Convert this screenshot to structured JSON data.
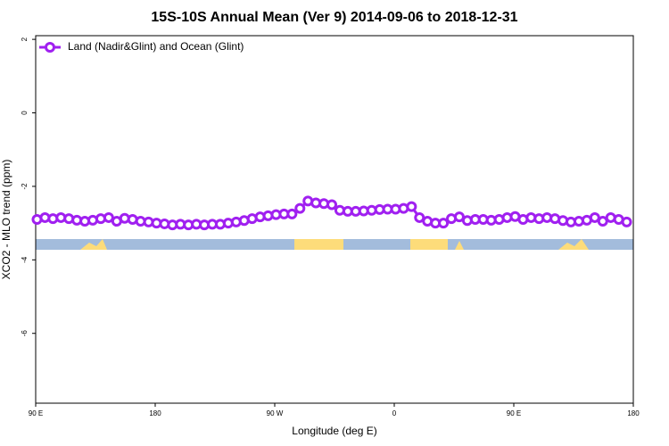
{
  "chart_data": {
    "type": "line",
    "title": "15S-10S Annual Mean (Ver 9)   2014-09-06 to 2018-12-31",
    "x_label": "Longitude (deg E)",
    "y_label": "XCO2 - MLO trend (ppm)",
    "xlim": [
      90,
      540
    ],
    "xticks": [
      {
        "value": 90,
        "label": "90 E"
      },
      180,
      {
        "value": 270,
        "label": "90 W"
      },
      {
        "value": 360,
        "label": "0"
      },
      {
        "value": 450,
        "label": "90 E"
      },
      {
        "value": 540,
        "label": "180"
      }
    ],
    "ylim": [
      -7.9,
      2.1
    ],
    "yticks": [
      2,
      0,
      -2,
      -4,
      -6
    ],
    "legend": "upper left",
    "x": [
      91,
      97,
      103,
      109,
      115,
      121,
      127,
      133,
      139,
      145,
      151,
      157,
      163,
      169,
      175,
      181,
      187,
      193,
      199,
      205,
      211,
      217,
      223,
      229,
      235,
      241,
      247,
      253,
      259,
      265,
      271,
      277,
      283,
      289,
      295,
      301,
      307,
      313,
      319,
      325,
      331,
      337,
      343,
      349,
      355,
      361,
      367,
      373,
      379,
      385,
      391,
      397,
      403,
      409,
      415,
      421,
      427,
      433,
      439,
      445,
      451,
      457,
      463,
      469,
      475,
      481,
      487,
      493,
      499,
      505,
      511,
      517,
      523,
      529,
      535
    ],
    "series": [
      {
        "name": "Land (Nadir&Glint) and Ocean (Glint)",
        "color": "#a020f0",
        "values": [
          -2.9,
          -2.85,
          -2.88,
          -2.85,
          -2.88,
          -2.92,
          -2.95,
          -2.92,
          -2.88,
          -2.85,
          -2.95,
          -2.87,
          -2.9,
          -2.95,
          -2.97,
          -3.0,
          -3.02,
          -3.05,
          -3.03,
          -3.05,
          -3.03,
          -3.05,
          -3.03,
          -3.03,
          -3.0,
          -2.97,
          -2.93,
          -2.88,
          -2.83,
          -2.8,
          -2.77,
          -2.75,
          -2.75,
          -2.6,
          -2.4,
          -2.45,
          -2.47,
          -2.5,
          -2.65,
          -2.68,
          -2.68,
          -2.67,
          -2.65,
          -2.63,
          -2.62,
          -2.62,
          -2.6,
          -2.55,
          -2.85,
          -2.95,
          -3.0,
          -3.0,
          -2.88,
          -2.83,
          -2.93,
          -2.9,
          -2.9,
          -2.92,
          -2.9,
          -2.85,
          -2.82,
          -2.9,
          -2.85,
          -2.88,
          -2.85,
          -2.88,
          -2.93,
          -2.97,
          -2.95,
          -2.92,
          -2.85,
          -2.95,
          -2.85,
          -2.9,
          -2.97
        ]
      }
    ]
  }
}
